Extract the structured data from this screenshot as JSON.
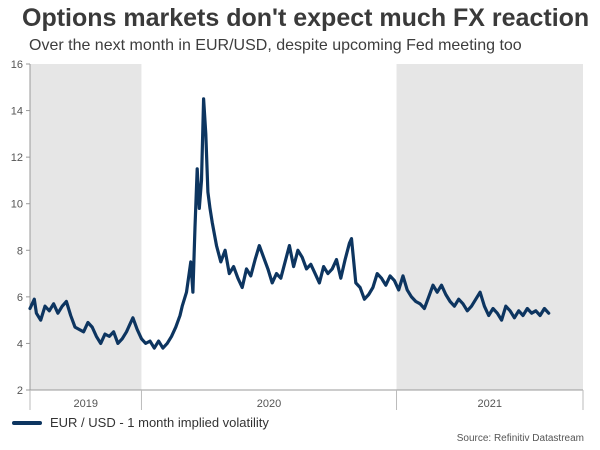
{
  "title": "Options markets don't expect much FX reaction",
  "subtitle": "Over the next month in EUR/USD, despite upcoming Fed meeting too",
  "source": "Source: Refinitiv Datastream",
  "chart_data": {
    "type": "line",
    "ylim": [
      2,
      16
    ],
    "y_ticks": [
      "2",
      "4",
      "6",
      "8",
      "10",
      "12",
      "14",
      "16"
    ],
    "x_year_labels": [
      "2019",
      "2020",
      "2021"
    ],
    "shaded_years": [
      "2019",
      "2021"
    ],
    "shade_color": "#e6e6e6",
    "x_range_months": [
      2019.25,
      2021.83
    ],
    "series": [
      {
        "name": "EUR / USD - 1 month implied volatility",
        "color": "#0d3560",
        "points": [
          [
            2019.25,
            5.5
          ],
          [
            2019.27,
            5.9
          ],
          [
            2019.28,
            5.3
          ],
          [
            2019.3,
            5.0
          ],
          [
            2019.32,
            5.6
          ],
          [
            2019.34,
            5.4
          ],
          [
            2019.36,
            5.7
          ],
          [
            2019.38,
            5.3
          ],
          [
            2019.4,
            5.6
          ],
          [
            2019.42,
            5.8
          ],
          [
            2019.44,
            5.2
          ],
          [
            2019.46,
            4.7
          ],
          [
            2019.48,
            4.6
          ],
          [
            2019.5,
            4.5
          ],
          [
            2019.52,
            4.9
          ],
          [
            2019.54,
            4.7
          ],
          [
            2019.56,
            4.3
          ],
          [
            2019.58,
            4.0
          ],
          [
            2019.6,
            4.4
          ],
          [
            2019.62,
            4.3
          ],
          [
            2019.64,
            4.5
          ],
          [
            2019.66,
            4.0
          ],
          [
            2019.68,
            4.2
          ],
          [
            2019.7,
            4.5
          ],
          [
            2019.72,
            4.9
          ],
          [
            2019.73,
            5.1
          ],
          [
            2019.75,
            4.6
          ],
          [
            2019.77,
            4.2
          ],
          [
            2019.79,
            4.0
          ],
          [
            2019.81,
            4.1
          ],
          [
            2019.83,
            3.8
          ],
          [
            2019.85,
            4.1
          ],
          [
            2019.87,
            3.8
          ],
          [
            2019.89,
            4.0
          ],
          [
            2019.91,
            4.3
          ],
          [
            2019.93,
            4.7
          ],
          [
            2019.95,
            5.2
          ],
          [
            2019.96,
            5.6
          ],
          [
            2019.98,
            6.2
          ],
          [
            2020.0,
            7.5
          ],
          [
            2020.01,
            6.2
          ],
          [
            2020.02,
            9.0
          ],
          [
            2020.03,
            11.5
          ],
          [
            2020.04,
            9.8
          ],
          [
            2020.05,
            11.0
          ],
          [
            2020.06,
            14.5
          ],
          [
            2020.07,
            13.0
          ],
          [
            2020.08,
            10.5
          ],
          [
            2020.09,
            9.8
          ],
          [
            2020.1,
            9.2
          ],
          [
            2020.12,
            8.2
          ],
          [
            2020.14,
            7.5
          ],
          [
            2020.16,
            8.0
          ],
          [
            2020.18,
            7.0
          ],
          [
            2020.2,
            7.3
          ],
          [
            2020.22,
            6.8
          ],
          [
            2020.24,
            6.4
          ],
          [
            2020.26,
            7.2
          ],
          [
            2020.28,
            6.9
          ],
          [
            2020.3,
            7.6
          ],
          [
            2020.32,
            8.2
          ],
          [
            2020.34,
            7.7
          ],
          [
            2020.36,
            7.2
          ],
          [
            2020.38,
            6.6
          ],
          [
            2020.4,
            7.0
          ],
          [
            2020.42,
            6.8
          ],
          [
            2020.44,
            7.5
          ],
          [
            2020.46,
            8.2
          ],
          [
            2020.48,
            7.3
          ],
          [
            2020.5,
            8.0
          ],
          [
            2020.52,
            7.7
          ],
          [
            2020.54,
            7.2
          ],
          [
            2020.56,
            7.4
          ],
          [
            2020.58,
            7.0
          ],
          [
            2020.6,
            6.6
          ],
          [
            2020.62,
            7.3
          ],
          [
            2020.64,
            7.0
          ],
          [
            2020.66,
            7.2
          ],
          [
            2020.68,
            7.6
          ],
          [
            2020.7,
            6.8
          ],
          [
            2020.72,
            7.6
          ],
          [
            2020.74,
            8.3
          ],
          [
            2020.75,
            8.5
          ],
          [
            2020.77,
            6.6
          ],
          [
            2020.79,
            6.4
          ],
          [
            2020.81,
            5.9
          ],
          [
            2020.83,
            6.1
          ],
          [
            2020.85,
            6.4
          ],
          [
            2020.87,
            7.0
          ],
          [
            2020.89,
            6.8
          ],
          [
            2020.91,
            6.5
          ],
          [
            2020.93,
            6.9
          ],
          [
            2020.95,
            6.7
          ],
          [
            2020.97,
            6.3
          ],
          [
            2020.99,
            6.9
          ],
          [
            2021.01,
            6.3
          ],
          [
            2021.03,
            6.0
          ],
          [
            2021.05,
            5.8
          ],
          [
            2021.07,
            5.7
          ],
          [
            2021.09,
            5.5
          ],
          [
            2021.11,
            6.0
          ],
          [
            2021.13,
            6.5
          ],
          [
            2021.15,
            6.2
          ],
          [
            2021.17,
            6.5
          ],
          [
            2021.19,
            6.1
          ],
          [
            2021.21,
            5.8
          ],
          [
            2021.23,
            5.6
          ],
          [
            2021.25,
            5.9
          ],
          [
            2021.27,
            5.7
          ],
          [
            2021.29,
            5.4
          ],
          [
            2021.31,
            5.6
          ],
          [
            2021.33,
            5.9
          ],
          [
            2021.35,
            6.2
          ],
          [
            2021.37,
            5.6
          ],
          [
            2021.39,
            5.2
          ],
          [
            2021.41,
            5.5
          ],
          [
            2021.43,
            5.3
          ],
          [
            2021.45,
            5.0
          ],
          [
            2021.47,
            5.6
          ],
          [
            2021.49,
            5.4
          ],
          [
            2021.51,
            5.1
          ],
          [
            2021.53,
            5.4
          ],
          [
            2021.55,
            5.2
          ],
          [
            2021.57,
            5.5
          ],
          [
            2021.59,
            5.3
          ],
          [
            2021.61,
            5.4
          ],
          [
            2021.63,
            5.2
          ],
          [
            2021.65,
            5.5
          ],
          [
            2021.67,
            5.3
          ]
        ]
      }
    ]
  }
}
